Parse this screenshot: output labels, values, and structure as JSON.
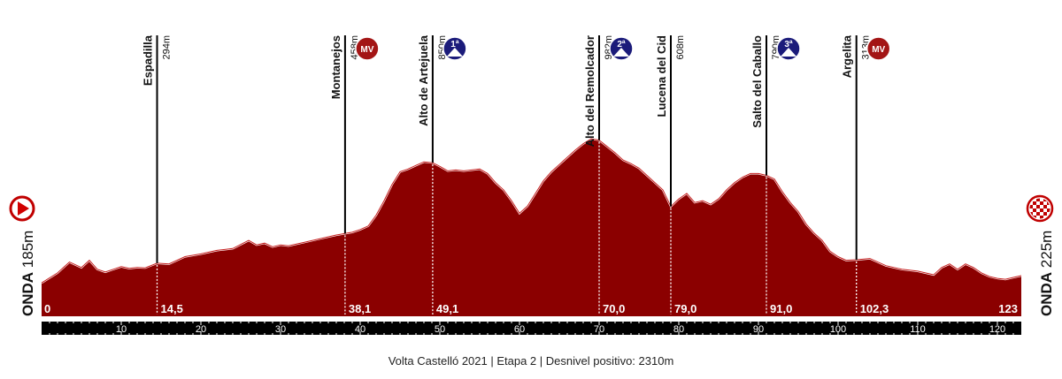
{
  "footer": "Volta Castelló 2021 | Etapa 2 | Desnivel positivo: 2310m",
  "start": {
    "name": "ONDA",
    "alt": "185m",
    "icon": "start-arrow-icon"
  },
  "finish": {
    "name": "ONDA",
    "alt": "225m",
    "icon": "checkered-flag-icon"
  },
  "colors": {
    "profile_fill": "#8b0000",
    "badge_red": "#a31515",
    "badge_navy": "#1b1b7a",
    "bar": "#000000"
  },
  "chart_data": {
    "type": "area",
    "xlim": [
      0,
      123
    ],
    "x_ticks": [
      10,
      20,
      30,
      40,
      50,
      60,
      70,
      80,
      90,
      100,
      110,
      120
    ],
    "x_tick_labels": [
      "10",
      "20",
      "30",
      "40",
      "50",
      "60",
      "70",
      "80",
      "90",
      "100",
      "110",
      "120"
    ],
    "x": [
      0,
      2,
      3.5,
      5,
      6,
      7,
      8,
      9,
      10,
      11,
      12,
      13,
      14.5,
      16,
      18,
      20,
      22,
      24,
      26,
      27,
      28,
      29,
      30,
      31,
      33,
      35,
      37,
      38.1,
      39,
      40,
      41,
      42,
      43,
      44,
      45,
      46,
      47,
      48,
      49.1,
      50,
      51,
      52,
      53,
      54,
      55,
      56,
      57,
      58,
      59,
      60,
      61,
      62,
      63,
      64,
      65,
      66,
      67,
      68,
      69,
      70,
      71,
      72,
      73,
      74,
      75,
      76,
      77,
      78,
      79,
      80,
      81,
      82,
      83,
      84,
      85,
      86,
      87,
      88,
      89,
      90,
      91,
      92,
      93,
      94,
      95,
      96,
      97,
      98,
      99,
      100,
      101,
      102.3,
      104,
      106,
      108,
      110,
      112,
      113,
      114,
      115,
      116,
      117,
      118,
      119,
      120,
      121,
      122,
      123
    ],
    "y": [
      185,
      240,
      300,
      270,
      310,
      260,
      245,
      260,
      275,
      265,
      270,
      268,
      294,
      290,
      330,
      345,
      365,
      375,
      420,
      395,
      405,
      385,
      395,
      390,
      410,
      430,
      450,
      458,
      465,
      480,
      500,
      560,
      640,
      730,
      800,
      815,
      835,
      855,
      850,
      830,
      805,
      810,
      805,
      810,
      815,
      790,
      740,
      700,
      640,
      570,
      610,
      680,
      750,
      800,
      840,
      880,
      920,
      955,
      982,
      975,
      940,
      905,
      865,
      845,
      820,
      780,
      740,
      700,
      608,
      650,
      680,
      630,
      640,
      620,
      650,
      700,
      740,
      770,
      790,
      790,
      780,
      760,
      690,
      630,
      580,
      510,
      460,
      420,
      360,
      330,
      310,
      313,
      320,
      280,
      260,
      250,
      230,
      270,
      290,
      260,
      290,
      270,
      240,
      220,
      210,
      205,
      215,
      225
    ],
    "ylim": [
      0,
      1000
    ],
    "waypoints": [
      {
        "name": "Espadilla",
        "alt": "294m",
        "km": 14.5,
        "km_label": "14,5",
        "badge": ""
      },
      {
        "name": "Montanejos",
        "alt": "458m",
        "km": 38.1,
        "km_label": "38,1",
        "badge": "MV"
      },
      {
        "name": "Alto de Artejuela",
        "alt": "850m",
        "km": 49.1,
        "km_label": "49,1",
        "badge": "1ª"
      },
      {
        "name": "Alto del Remolcador",
        "alt": "982m",
        "km": 70.0,
        "km_label": "70,0",
        "badge": "2ª"
      },
      {
        "name": "Lucena del Cid",
        "alt": "608m",
        "km": 79.0,
        "km_label": "79,0",
        "badge": ""
      },
      {
        "name": "Salto del Caballo",
        "alt": "790m",
        "km": 91.0,
        "km_label": "91,0",
        "badge": "3ª"
      },
      {
        "name": "Argelita",
        "alt": "313m",
        "km": 102.3,
        "km_label": "102,3",
        "badge": "MV"
      }
    ],
    "start_km_label": "0",
    "end_km_label": "123"
  }
}
